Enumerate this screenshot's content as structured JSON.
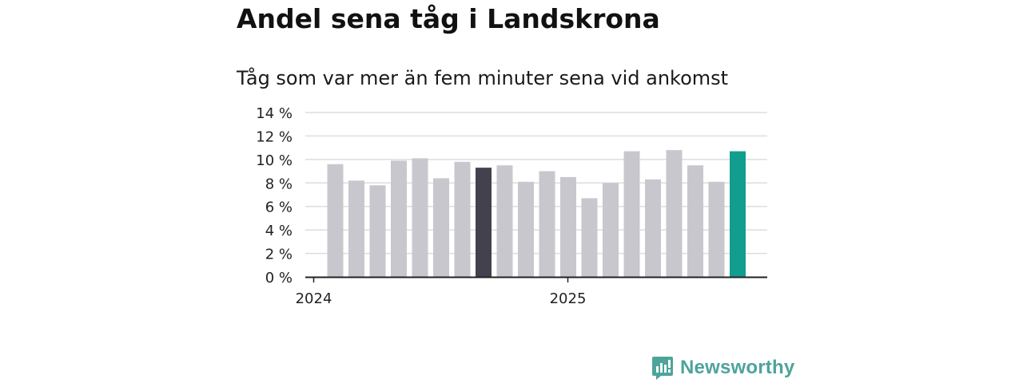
{
  "header": {
    "title": "Andel sena tåg i Landskrona",
    "subtitle": "Tåg som var mer än fem minuter sena vid ankomst"
  },
  "brand": {
    "name": "Newsworthy",
    "icon": "newsworthy-logo-icon",
    "color": "#4da49a"
  },
  "colors": {
    "bar_default": "#c8c7ce",
    "bar_highlight_dark": "#43414d",
    "bar_latest": "#119e8f",
    "grid": "#dddddd",
    "axis": "#222222"
  },
  "chart_data": {
    "type": "bar",
    "title": "Andel sena tåg i Landskrona",
    "subtitle": "Tåg som var mer än fem minuter sena vid ankomst",
    "ylim": [
      0,
      14
    ],
    "yticks": [
      0,
      2,
      4,
      6,
      8,
      10,
      12,
      14
    ],
    "ytick_labels": [
      "0 %",
      "2 %",
      "4 %",
      "6 %",
      "8 %",
      "10 %",
      "12 %",
      "14 %"
    ],
    "xtick_labels": [
      {
        "label": "2024",
        "at_index": 0
      },
      {
        "label": "2025",
        "at_index": 12
      }
    ],
    "grid": true,
    "values": [
      9.6,
      8.2,
      7.8,
      9.9,
      10.1,
      8.4,
      9.8,
      9.3,
      9.5,
      8.1,
      9.0,
      8.5,
      6.7,
      8.0,
      10.7,
      8.3,
      10.8,
      9.5,
      8.1,
      10.7
    ],
    "highlight": {
      "7": "bar_highlight_dark",
      "19": "bar_latest"
    }
  }
}
